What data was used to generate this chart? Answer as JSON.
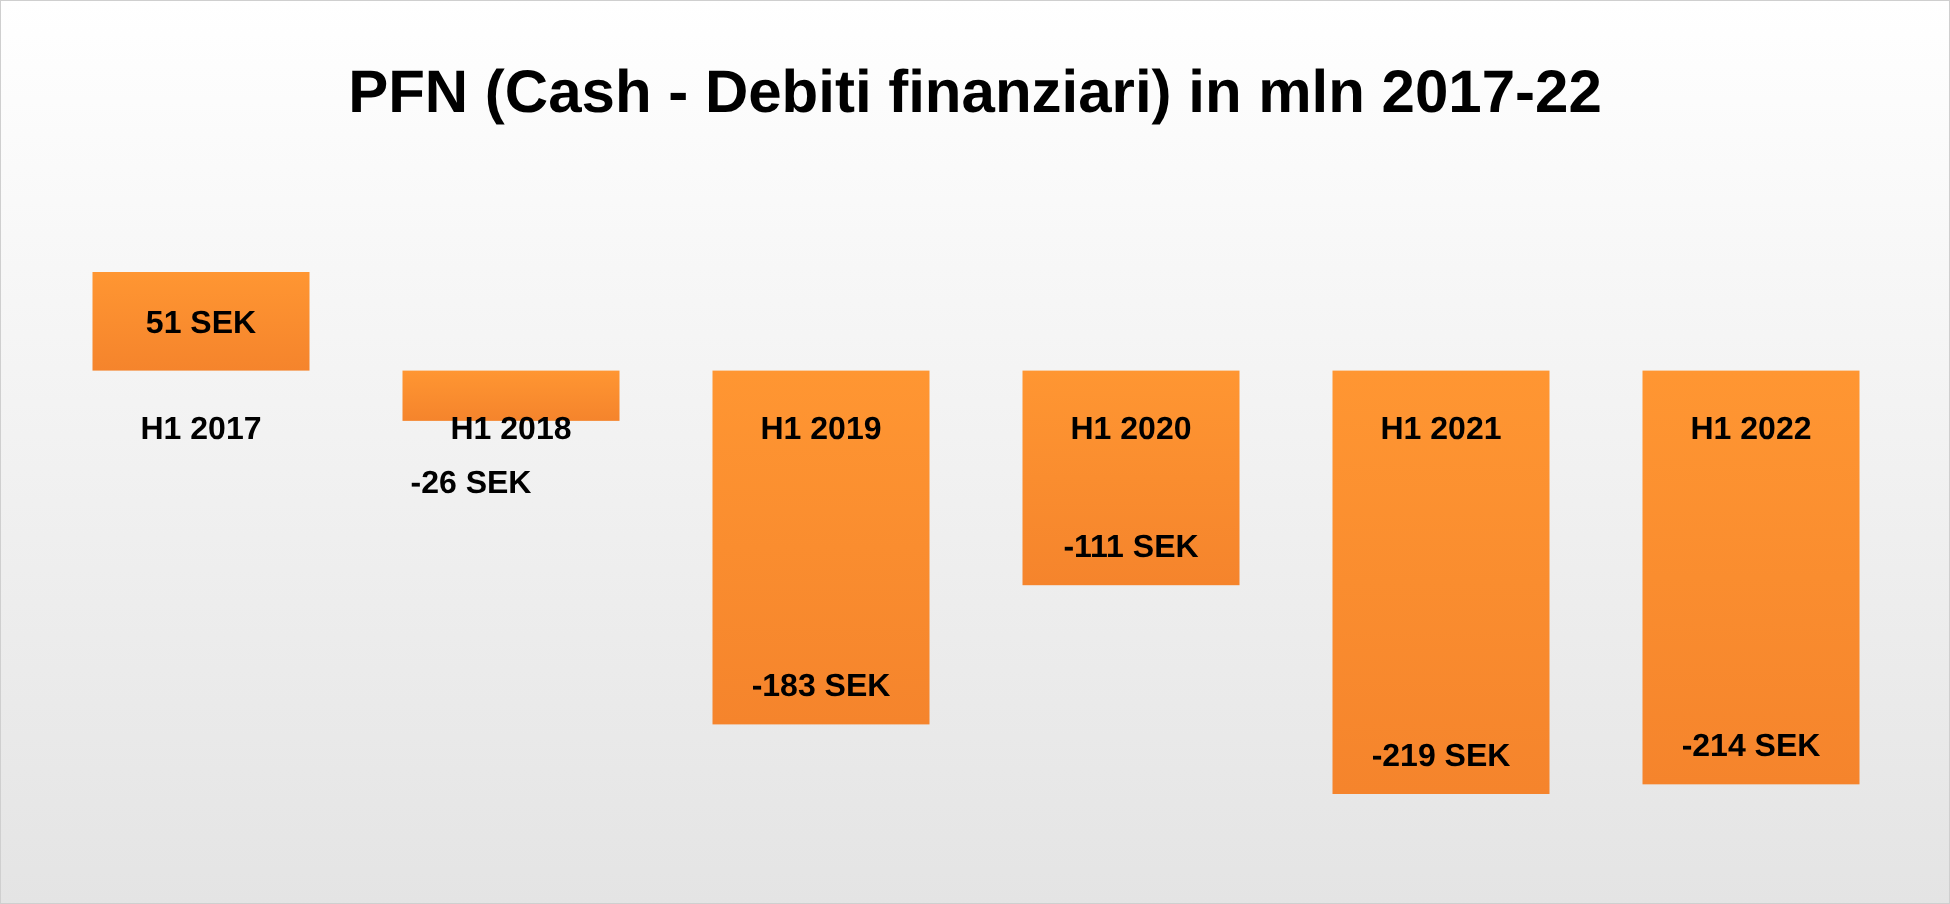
{
  "chart_data": {
    "type": "bar",
    "title": "PFN (Cash - Debiti finanziari) in mln 2017-22",
    "categories": [
      "H1 2017",
      "H1 2018",
      "H1 2019",
      "H1 2020",
      "H1 2021",
      "H1 2022"
    ],
    "values": [
      51,
      -26,
      -183,
      -111,
      -219,
      -214
    ],
    "value_labels": [
      "51 SEK",
      "-26 SEK",
      "-183 SEK",
      "-111 SEK",
      "-219 SEK",
      "-214 SEK"
    ],
    "color": "#f5842c"
  }
}
